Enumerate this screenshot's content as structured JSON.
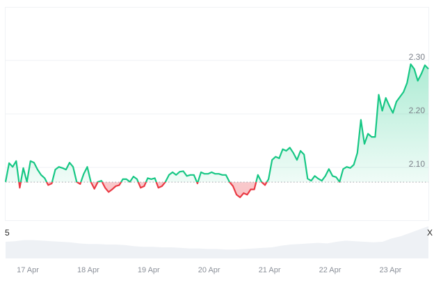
{
  "chart_data": {
    "type": "line",
    "title": "",
    "xlabel": "",
    "ylabel": "",
    "ylim": [
      2.0,
      2.4
    ],
    "y_ticks": [
      "2.10",
      "2.20",
      "2.30"
    ],
    "x_ticks": [
      "17 Apr",
      "18 Apr",
      "19 Apr",
      "20 Apr",
      "21 Apr",
      "22 Apr",
      "23 Apr"
    ],
    "baseline": 2.0725,
    "grid": true,
    "colors": {
      "up": "#16c784",
      "down": "#ea3943",
      "volume": "#eef1f5",
      "grid": "#eff1f4",
      "baseline": "#9aa0a8"
    },
    "edge_labels": {
      "left": "5",
      "right": "X"
    },
    "series": [
      {
        "values": [
          2.073,
          2.108,
          2.101,
          2.112,
          2.062,
          2.099,
          2.073,
          2.112,
          2.109,
          2.096,
          2.086,
          2.08,
          2.067,
          2.07,
          2.096,
          2.101,
          2.099,
          2.096,
          2.109,
          2.101,
          2.073,
          2.069,
          2.088,
          2.101,
          2.073,
          2.06,
          2.073,
          2.075,
          2.062,
          2.054,
          2.059,
          2.065,
          2.067,
          2.078,
          2.078,
          2.073,
          2.083,
          2.078,
          2.062,
          2.065,
          2.08,
          2.078,
          2.08,
          2.062,
          2.065,
          2.073,
          2.086,
          2.091,
          2.086,
          2.092,
          2.093,
          2.084,
          2.086,
          2.086,
          2.07,
          2.091,
          2.088,
          2.088,
          2.091,
          2.088,
          2.088,
          2.086,
          2.086,
          2.073,
          2.065,
          2.049,
          2.044,
          2.052,
          2.049,
          2.059,
          2.059,
          2.086,
          2.073,
          2.067,
          2.078,
          2.114,
          2.12,
          2.117,
          2.134,
          2.131,
          2.137,
          2.127,
          2.114,
          2.131,
          2.124,
          2.079,
          2.075,
          2.084,
          2.079,
          2.075,
          2.084,
          2.097,
          2.084,
          2.082,
          2.073,
          2.097,
          2.101,
          2.099,
          2.105,
          2.127,
          2.189,
          2.144,
          2.163,
          2.157,
          2.157,
          2.236,
          2.206,
          2.23,
          2.215,
          2.202,
          2.223,
          2.232,
          2.241,
          2.258,
          2.293,
          2.284,
          2.262,
          2.275,
          2.291,
          2.284
        ]
      }
    ],
    "volume": [
      30,
      31,
      33,
      33,
      32,
      31,
      30,
      29,
      27,
      26,
      26,
      25,
      25,
      24,
      22,
      21,
      21,
      20,
      20,
      19,
      18,
      18,
      17,
      17,
      16,
      16,
      17,
      18,
      19,
      20,
      23,
      25,
      26,
      27,
      28,
      27,
      30,
      32,
      31,
      30,
      29,
      30,
      36,
      40,
      46,
      52,
      58
    ]
  }
}
